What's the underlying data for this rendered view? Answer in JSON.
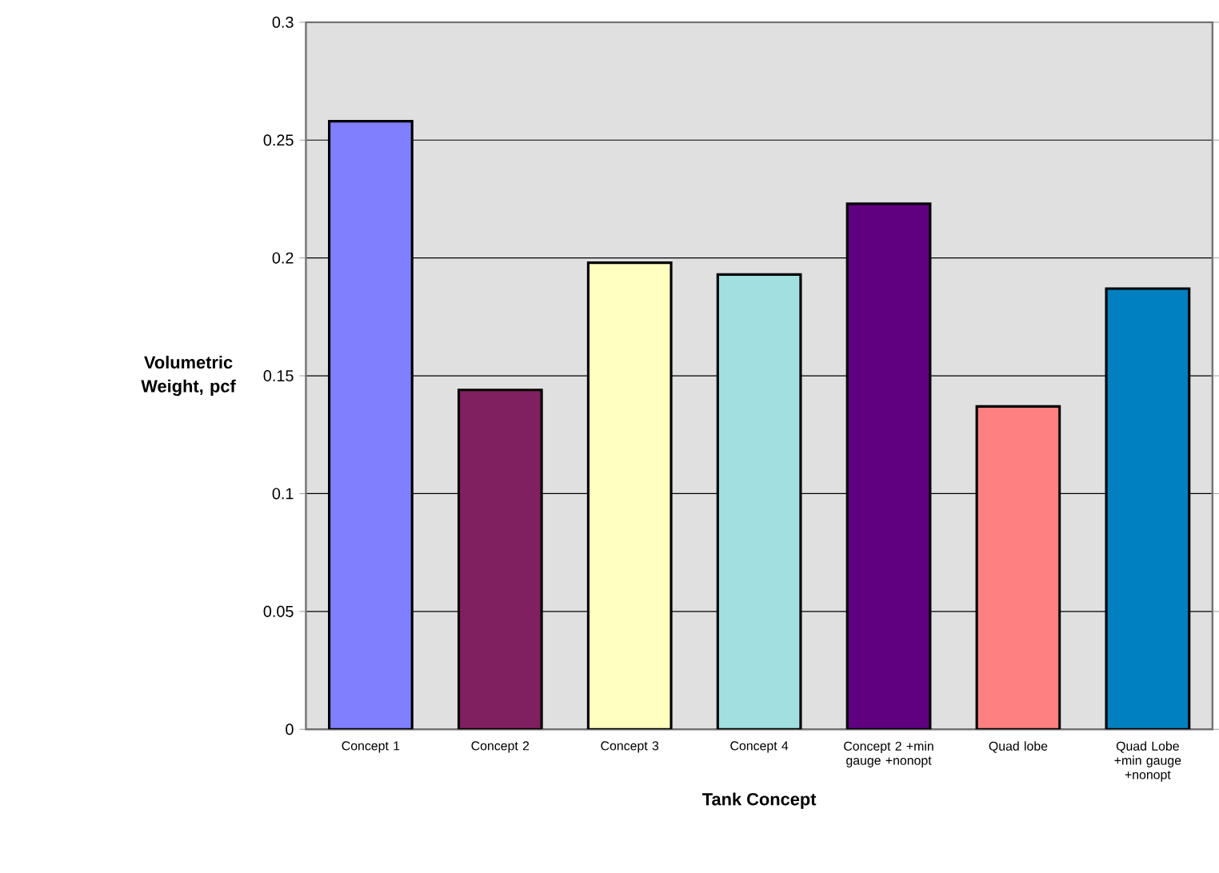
{
  "chart_data": {
    "type": "bar",
    "xlabel": "Tank  Concept",
    "ylabel": "Volumetric Weight, pcf",
    "categories": [
      "Concept 1",
      "Concept 2",
      "Concept 3",
      "Concept 4",
      "Concept 2 +min gauge +nonopt",
      "Quad lobe",
      "Quad Lobe +min gauge +nonopt"
    ],
    "values": [
      0.258,
      0.144,
      0.198,
      0.193,
      0.223,
      0.137,
      0.187
    ],
    "colors": [
      "#8080ff",
      "#802060",
      "#ffffc0",
      "#a0e0e0",
      "#600080",
      "#ff8080",
      "#0080c0"
    ],
    "ylim": [
      0,
      0.3
    ],
    "yticks": [
      0,
      0.05,
      0.1,
      0.15,
      0.2,
      0.25,
      0.3
    ],
    "grid": "y"
  }
}
